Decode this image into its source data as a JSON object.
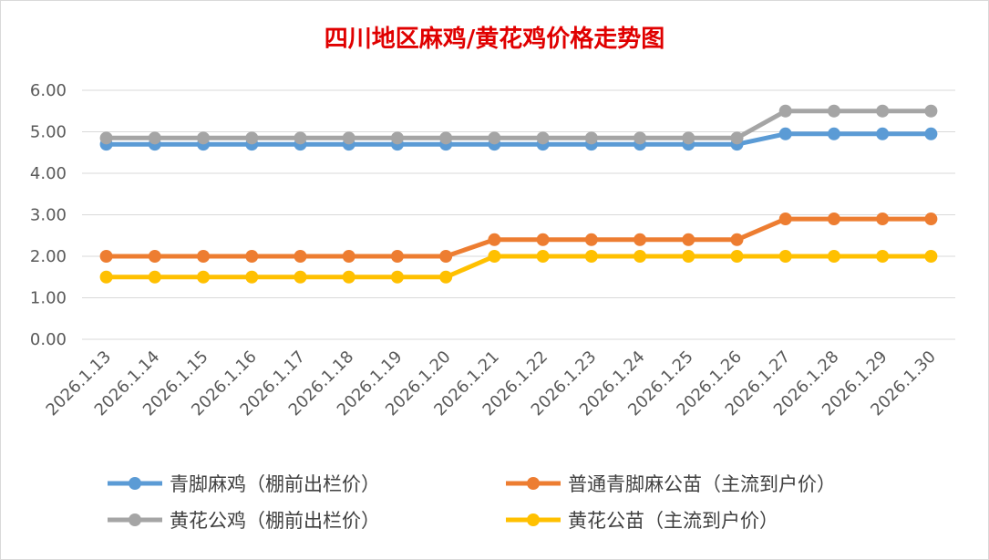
{
  "chart_data": {
    "type": "line",
    "title": "四川地区麻鸡/黄花鸡价格走势图",
    "xlabel": "",
    "ylabel": "",
    "ylim": [
      0,
      6
    ],
    "y_ticks": [
      "0.00",
      "1.00",
      "2.00",
      "3.00",
      "4.00",
      "5.00",
      "6.00"
    ],
    "grid": true,
    "legend_position": "bottom",
    "categories": [
      "2026.1.13",
      "2026.1.14",
      "2026.1.15",
      "2026.1.16",
      "2026.1.17",
      "2026.1.18",
      "2026.1.19",
      "2026.1.20",
      "2026.1.21",
      "2026.1.22",
      "2026.1.23",
      "2026.1.24",
      "2026.1.25",
      "2026.1.26",
      "2026.1.27",
      "2026.1.28",
      "2026.1.29",
      "2026.1.30"
    ],
    "series": [
      {
        "name": "青脚麻鸡（棚前出栏价）",
        "color": "#5b9bd5",
        "values": [
          4.7,
          4.7,
          4.7,
          4.7,
          4.7,
          4.7,
          4.7,
          4.7,
          4.7,
          4.7,
          4.7,
          4.7,
          4.7,
          4.7,
          4.95,
          4.95,
          4.95,
          4.95
        ]
      },
      {
        "name": "普通青脚麻公苗（主流到户价）",
        "color": "#ed7d31",
        "values": [
          2.0,
          2.0,
          2.0,
          2.0,
          2.0,
          2.0,
          2.0,
          2.0,
          2.4,
          2.4,
          2.4,
          2.4,
          2.4,
          2.4,
          2.9,
          2.9,
          2.9,
          2.9
        ]
      },
      {
        "name": "黄花公鸡（棚前出栏价）",
        "color": "#a5a5a5",
        "values": [
          4.85,
          4.85,
          4.85,
          4.85,
          4.85,
          4.85,
          4.85,
          4.85,
          4.85,
          4.85,
          4.85,
          4.85,
          4.85,
          4.85,
          5.5,
          5.5,
          5.5,
          5.5
        ]
      },
      {
        "name": "黄花公苗（主流到户价）",
        "color": "#ffc000",
        "values": [
          1.5,
          1.5,
          1.5,
          1.5,
          1.5,
          1.5,
          1.5,
          1.5,
          2.0,
          2.0,
          2.0,
          2.0,
          2.0,
          2.0,
          2.0,
          2.0,
          2.0,
          2.0
        ]
      }
    ]
  }
}
